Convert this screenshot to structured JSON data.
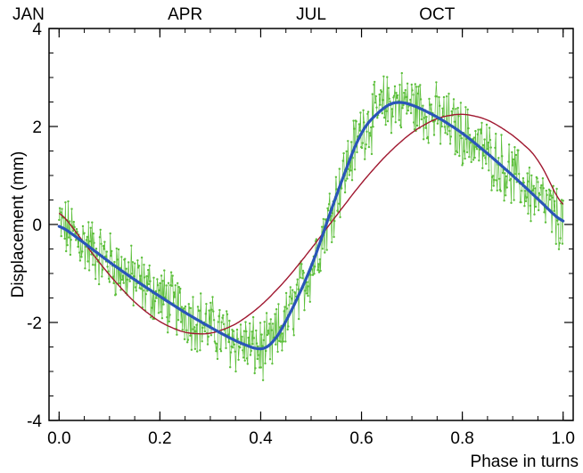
{
  "chart_data": {
    "type": "line",
    "title": "",
    "xlabel": "Phase in turns",
    "ylabel": "Displacement (mm)",
    "xlim": [
      -0.02,
      1.02
    ],
    "ylim": [
      -4,
      4
    ],
    "grid": false,
    "legend": "none",
    "x_ticks": [
      {
        "value": 0.0,
        "label": "0.0"
      },
      {
        "value": 0.2,
        "label": "0.2"
      },
      {
        "value": 0.4,
        "label": "0.4"
      },
      {
        "value": 0.6,
        "label": "0.6"
      },
      {
        "value": 0.8,
        "label": "0.8"
      },
      {
        "value": 1.0,
        "label": "1.0"
      }
    ],
    "y_ticks": [
      {
        "value": -4,
        "label": "-4"
      },
      {
        "value": -2,
        "label": "-2"
      },
      {
        "value": 0,
        "label": "0"
      },
      {
        "value": 2,
        "label": "2"
      },
      {
        "value": 4,
        "label": "4"
      }
    ],
    "top_labels": [
      {
        "x": 0.0,
        "label": "JAN"
      },
      {
        "x": 0.25,
        "label": "APR"
      },
      {
        "x": 0.5,
        "label": "JUL"
      },
      {
        "x": 0.75,
        "label": "OCT"
      }
    ],
    "series": [
      {
        "kind": "observations",
        "color": "#5cbf3a",
        "noise_amplitude": 0.55,
        "n_points": 720
      },
      {
        "kind": "sinusoid_fit",
        "color": "#a01830",
        "x": [
          0.0,
          0.05,
          0.1,
          0.15,
          0.2,
          0.25,
          0.3,
          0.35,
          0.4,
          0.45,
          0.5,
          0.55,
          0.6,
          0.65,
          0.7,
          0.75,
          0.8,
          0.85,
          0.9,
          0.95,
          1.0
        ],
        "y": [
          0.3,
          -0.38,
          -1.04,
          -1.6,
          -2.0,
          -2.22,
          -2.24,
          -2.05,
          -1.67,
          -1.14,
          -0.5,
          0.18,
          0.85,
          1.43,
          1.89,
          2.18,
          2.27,
          2.15,
          1.83,
          1.37,
          0.3
        ]
      },
      {
        "kind": "smooth_fit",
        "color": "#2a55b8",
        "x": [
          0.0,
          0.05,
          0.1,
          0.15,
          0.2,
          0.25,
          0.3,
          0.35,
          0.4,
          0.42,
          0.45,
          0.5,
          0.55,
          0.6,
          0.65,
          0.67,
          0.7,
          0.75,
          0.8,
          0.85,
          0.9,
          0.95,
          1.0
        ],
        "y": [
          0.0,
          -0.38,
          -0.77,
          -1.13,
          -1.47,
          -1.8,
          -2.1,
          -2.38,
          -2.58,
          -2.5,
          -2.0,
          -0.9,
          0.6,
          1.95,
          2.45,
          2.52,
          2.45,
          2.2,
          1.87,
          1.45,
          1.0,
          0.52,
          0.02
        ]
      }
    ]
  }
}
